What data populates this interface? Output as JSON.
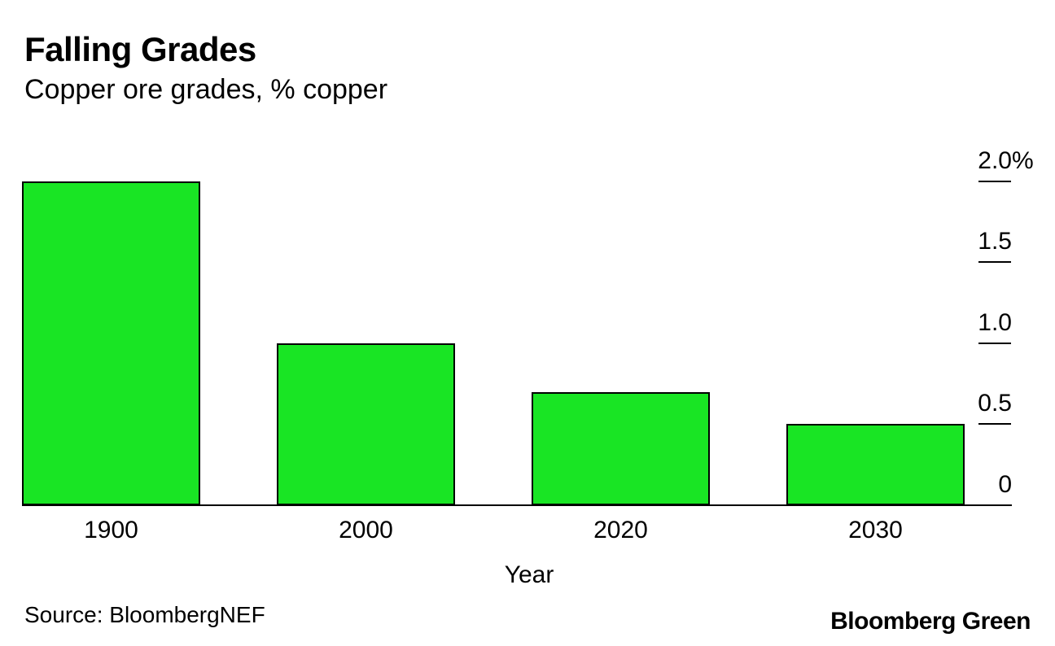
{
  "chart_data": {
    "type": "bar",
    "title": "Falling Grades",
    "subtitle": "Copper ore grades, % copper",
    "categories": [
      "1900",
      "2000",
      "2020",
      "2030"
    ],
    "values": [
      2.0,
      1.0,
      0.7,
      0.5
    ],
    "xlabel": "Year",
    "ylabel": "% copper",
    "ylim": [
      0,
      2.0
    ],
    "yticks": [
      {
        "value": 2.0,
        "label": "2.0",
        "suffix": "%",
        "tick": true
      },
      {
        "value": 1.5,
        "label": "1.5",
        "tick": true
      },
      {
        "value": 1.0,
        "label": "1.0",
        "tick": true
      },
      {
        "value": 0.5,
        "label": "0.5",
        "tick": true
      },
      {
        "value": 0,
        "label": "0",
        "tick": false
      }
    ],
    "axis_side": "right",
    "grid": false,
    "bar_color": "#19e524",
    "bar_border_color": "#000000",
    "text_color": "#000000",
    "background_color": "#ffffff"
  },
  "footer": {
    "source": "Source: BloombergNEF",
    "brand": "Bloomberg Green"
  }
}
